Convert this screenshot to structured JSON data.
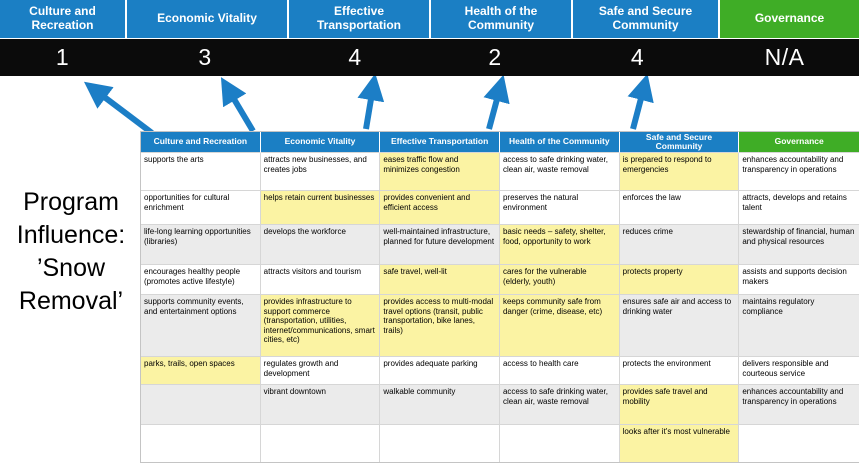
{
  "colors": {
    "header_blue": "#1B7FC4",
    "header_green": "#3FAD26",
    "highlight_yellow": "#FBF3A3",
    "score_band_bg": "#0B0B0B",
    "arrow_blue": "#1C7EC6",
    "band_gray": "#EBEBEB"
  },
  "summary": {
    "columns": [
      {
        "label": "Culture and Recreation",
        "value": "1",
        "color_key": "header_blue"
      },
      {
        "label": "Economic Vitality",
        "value": "3",
        "color_key": "header_blue"
      },
      {
        "label": "Effective Transportation",
        "value": "4",
        "color_key": "header_blue"
      },
      {
        "label": "Health of the Community",
        "value": "2",
        "color_key": "header_blue"
      },
      {
        "label": "Safe and Secure Community",
        "value": "4",
        "color_key": "header_blue"
      },
      {
        "label": "Governance",
        "value": "N/A",
        "color_key": "header_green"
      }
    ]
  },
  "program_label": {
    "lines": [
      "Program",
      "Influence:",
      "’Snow",
      "Removal’"
    ]
  },
  "matrix": {
    "headers": [
      {
        "label": "Culture and Recreation",
        "color_key": "header_blue"
      },
      {
        "label": "Economic Vitality",
        "color_key": "header_blue"
      },
      {
        "label": "Effective Transportation",
        "color_key": "header_blue"
      },
      {
        "label": "Health of the Community",
        "color_key": "header_blue"
      },
      {
        "label": "Safe and Secure Community",
        "color_key": "header_blue"
      },
      {
        "label": "Governance",
        "color_key": "header_green"
      }
    ],
    "rows": [
      [
        {
          "text": "supports the arts",
          "highlight": false
        },
        {
          "text": "attracts new businesses, and creates jobs",
          "highlight": false
        },
        {
          "text": "eases traffic flow and minimizes congestion",
          "highlight": true
        },
        {
          "text": "access to safe drinking water, clean air, waste removal",
          "highlight": false
        },
        {
          "text": "is prepared to respond to emergencies",
          "highlight": true
        },
        {
          "text": "enhances accountability and transparency in operations",
          "highlight": false
        }
      ],
      [
        {
          "text": "opportunities for cultural enrichment",
          "highlight": false
        },
        {
          "text": "helps retain current businesses",
          "highlight": true
        },
        {
          "text": "provides convenient and efficient access",
          "highlight": true
        },
        {
          "text": "preserves the natural environment",
          "highlight": false
        },
        {
          "text": "enforces the law",
          "highlight": false
        },
        {
          "text": "attracts, develops and retains talent",
          "highlight": false
        }
      ],
      [
        {
          "text": "life-long learning opportunities (libraries)",
          "highlight": false
        },
        {
          "text": "develops the workforce",
          "highlight": false
        },
        {
          "text": "well-maintained infrastructure, planned for future development",
          "highlight": false
        },
        {
          "text": "basic needs – safety, shelter, food, opportunity to work",
          "highlight": true
        },
        {
          "text": "reduces crime",
          "highlight": false
        },
        {
          "text": "stewardship of financial, human and physical resources",
          "highlight": false
        }
      ],
      [
        {
          "text": "encourages healthy people (promotes active lifestyle)",
          "highlight": false
        },
        {
          "text": "attracts visitors and tourism",
          "highlight": false
        },
        {
          "text": "safe travel, well-lit",
          "highlight": true
        },
        {
          "text": "cares for the vulnerable (elderly, youth)",
          "highlight": true
        },
        {
          "text": "protects property",
          "highlight": true
        },
        {
          "text": "assists and supports decision makers",
          "highlight": false
        }
      ],
      [
        {
          "text": "supports community events, and entertainment options",
          "highlight": false
        },
        {
          "text": "provides infrastructure to support commerce (transportation, utilities, internet/communications, smart cities, etc)",
          "highlight": true
        },
        {
          "text": "provides access to multi-modal travel options (transit, public transportation, bike lanes, trails)",
          "highlight": true
        },
        {
          "text": "keeps community safe from danger (crime, disease, etc)",
          "highlight": true
        },
        {
          "text": "ensures safe air and access to drinking water",
          "highlight": false
        },
        {
          "text": "maintains regulatory compliance",
          "highlight": false
        }
      ],
      [
        {
          "text": "parks, trails, open spaces",
          "highlight": true
        },
        {
          "text": "regulates growth and development",
          "highlight": false
        },
        {
          "text": "provides adequate parking",
          "highlight": false
        },
        {
          "text": "access to health care",
          "highlight": false
        },
        {
          "text": "protects the environment",
          "highlight": false
        },
        {
          "text": "delivers responsible and courteous service",
          "highlight": false
        }
      ],
      [
        {
          "text": "",
          "highlight": false
        },
        {
          "text": "vibrant downtown",
          "highlight": false
        },
        {
          "text": "walkable community",
          "highlight": false
        },
        {
          "text": "access to safe drinking water, clean air, waste removal",
          "highlight": false
        },
        {
          "text": "provides safe travel and mobility",
          "highlight": true
        },
        {
          "text": "enhances accountability and transparency in operations",
          "highlight": false
        }
      ],
      [
        {
          "text": "",
          "highlight": false
        },
        {
          "text": "",
          "highlight": false
        },
        {
          "text": "",
          "highlight": false
        },
        {
          "text": "",
          "highlight": false
        },
        {
          "text": "looks after it's most vulnerable",
          "highlight": true
        },
        {
          "text": "",
          "highlight": false
        }
      ]
    ]
  }
}
